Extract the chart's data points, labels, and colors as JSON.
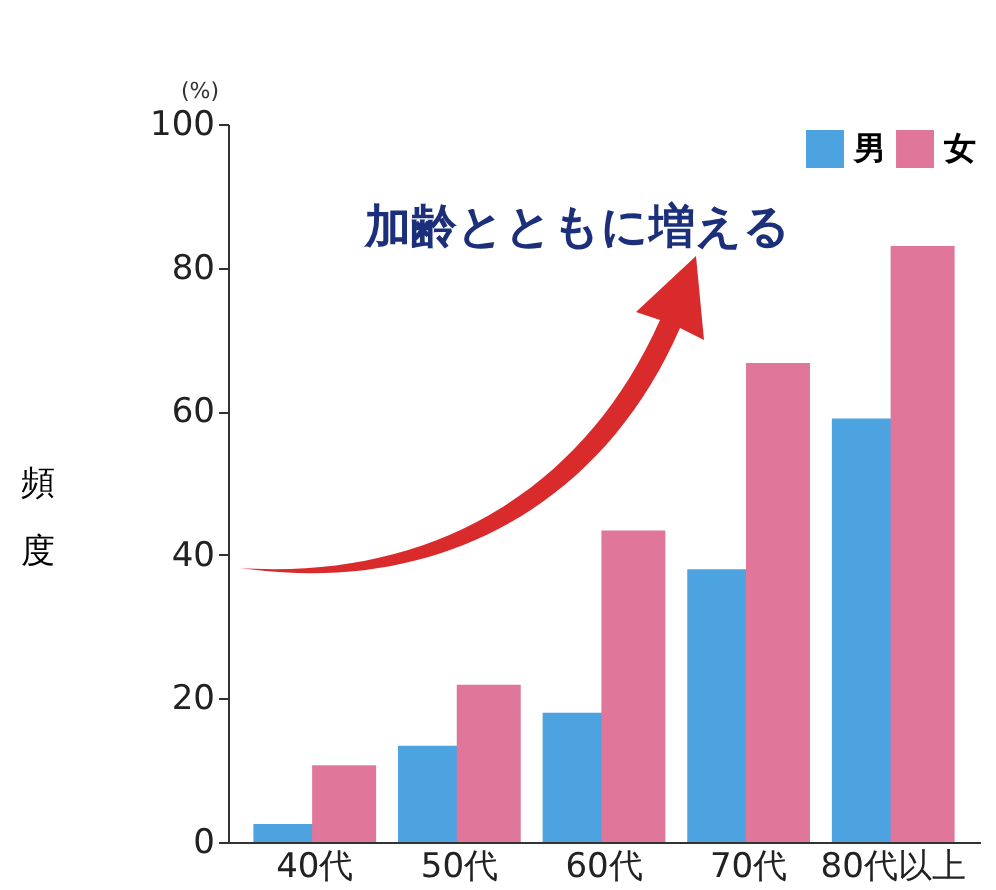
{
  "chart_data": {
    "type": "bar",
    "ylabel": "頻度",
    "categories": [
      "40代",
      "50代",
      "60代",
      "70代",
      "80代以上"
    ],
    "series": [
      {
        "name": "男",
        "color": "#4da3e0",
        "values": [
          2.5,
          13.4,
          18,
          38,
          59
        ]
      },
      {
        "name": "女",
        "color": "#e0769a",
        "values": [
          10.7,
          21.9,
          43.4,
          66.7,
          83
        ]
      }
    ],
    "ylim": [
      0,
      100
    ],
    "yticks": [
      0,
      20,
      40,
      60,
      80,
      100
    ],
    "grid": false,
    "legend": "top right",
    "annotations": [
      "(%)",
      "加齢とともに増える"
    ]
  }
}
